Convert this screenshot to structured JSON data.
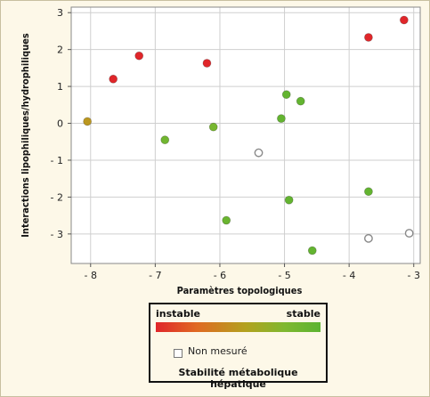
{
  "chart_data": {
    "type": "scatter",
    "xlabel": "Paramètres topologiques",
    "ylabel": "Interactions lipophiliques/hydrophiliques",
    "xlim": [
      -8.3,
      -2.9
    ],
    "ylim": [
      -3.8,
      3.15
    ],
    "xticks": [
      {
        "value": -8,
        "label": "- 8"
      },
      {
        "value": -7,
        "label": "- 7"
      },
      {
        "value": -6,
        "label": "- 6"
      },
      {
        "value": -5,
        "label": "- 5"
      },
      {
        "value": -4,
        "label": "- 4"
      },
      {
        "value": -3,
        "label": "- 3"
      }
    ],
    "yticks": [
      {
        "value": 3,
        "label": "3"
      },
      {
        "value": 2,
        "label": "2"
      },
      {
        "value": 1,
        "label": "1"
      },
      {
        "value": 0,
        "label": "0"
      },
      {
        "value": -1,
        "label": "- 1"
      },
      {
        "value": -2,
        "label": "- 2"
      },
      {
        "value": -3,
        "label": "- 3"
      }
    ],
    "grid": true,
    "colorscale": {
      "min_label": "instable",
      "max_label": "stable",
      "title": "Stabilité métabolique hépatique",
      "colors": [
        "#e0262a",
        "#e06a22",
        "#b2a21e",
        "#7fb830",
        "#5cb330"
      ]
    },
    "unmeasured_label": "Non mesuré",
    "points": [
      {
        "x": -8.05,
        "y": 0.05,
        "stability": 0.45,
        "measured": true
      },
      {
        "x": -7.65,
        "y": 1.2,
        "stability": 0.0,
        "measured": true
      },
      {
        "x": -7.25,
        "y": 1.83,
        "stability": 0.0,
        "measured": true
      },
      {
        "x": -6.2,
        "y": 1.63,
        "stability": 0.0,
        "measured": true
      },
      {
        "x": -3.7,
        "y": 2.33,
        "stability": 0.0,
        "measured": true
      },
      {
        "x": -3.15,
        "y": 2.8,
        "stability": 0.0,
        "measured": true
      },
      {
        "x": -6.85,
        "y": -0.45,
        "stability": 0.85,
        "measured": true
      },
      {
        "x": -6.1,
        "y": -0.1,
        "stability": 0.8,
        "measured": true
      },
      {
        "x": -5.9,
        "y": -2.63,
        "stability": 0.9,
        "measured": true
      },
      {
        "x": -5.05,
        "y": 0.13,
        "stability": 0.95,
        "measured": true
      },
      {
        "x": -4.97,
        "y": 0.78,
        "stability": 0.95,
        "measured": true
      },
      {
        "x": -4.75,
        "y": 0.6,
        "stability": 0.95,
        "measured": true
      },
      {
        "x": -4.93,
        "y": -2.08,
        "stability": 0.95,
        "measured": true
      },
      {
        "x": -4.57,
        "y": -3.45,
        "stability": 0.95,
        "measured": true
      },
      {
        "x": -3.7,
        "y": -1.85,
        "stability": 0.95,
        "measured": true
      },
      {
        "x": -5.4,
        "y": -0.8,
        "stability": null,
        "measured": false
      },
      {
        "x": -3.7,
        "y": -3.12,
        "stability": null,
        "measured": false
      },
      {
        "x": -3.07,
        "y": -2.98,
        "stability": null,
        "measured": false
      }
    ]
  }
}
